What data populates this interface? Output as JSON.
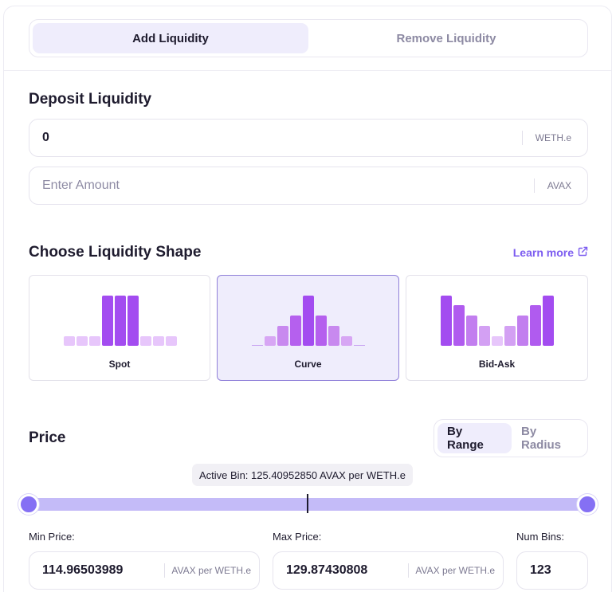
{
  "tabs": [
    {
      "label": "Add Liquidity",
      "active": true
    },
    {
      "label": "Remove Liquidity",
      "active": false
    }
  ],
  "deposit": {
    "title": "Deposit Liquidity",
    "token_a": {
      "value": "0",
      "token": "WETH.e"
    },
    "token_b": {
      "value": "",
      "placeholder": "Enter Amount",
      "token": "AVAX"
    }
  },
  "shape": {
    "title": "Choose Liquidity Shape",
    "learn_more": "Learn more",
    "options": [
      {
        "label": "Spot",
        "selected": false
      },
      {
        "label": "Curve",
        "selected": true
      },
      {
        "label": "Bid-Ask",
        "selected": false
      }
    ]
  },
  "price": {
    "title": "Price",
    "modes": [
      {
        "label": "By Range",
        "active": true
      },
      {
        "label": "By Radius",
        "active": false
      }
    ],
    "active_bin": "Active Bin: 125.40952850 AVAX per WETH.e",
    "min_label": "Min Price:",
    "min_value": "114.96503989",
    "max_label": "Max Price:",
    "max_value": "129.87430808",
    "unit": "AVAX per WETH.e",
    "bins_label": "Num Bins:",
    "bins_value": "123"
  },
  "colors": {
    "accent": "#8570f4",
    "link": "#7c5cf0",
    "bar_strong": "#a855f7",
    "bar_light": "#e7c6fb"
  },
  "icons": {
    "learn_more": "external-link-icon"
  }
}
